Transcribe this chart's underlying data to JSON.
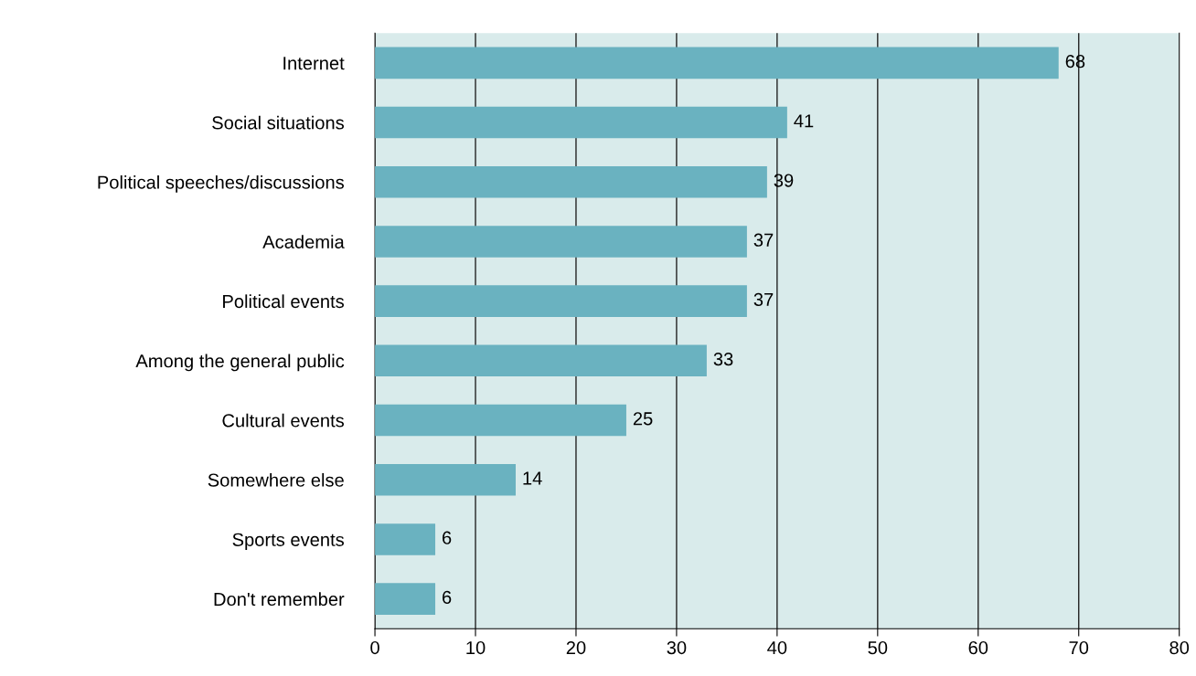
{
  "chart_data": {
    "type": "bar",
    "orientation": "horizontal",
    "categories": [
      "Internet",
      "Social situations",
      "Political speeches/discussions",
      "Academia",
      "Political events",
      "Among the general public",
      "Cultural events",
      "Somewhere else",
      "Sports events",
      "Don't remember"
    ],
    "values": [
      68,
      41,
      39,
      37,
      37,
      33,
      25,
      14,
      6,
      6
    ],
    "color": "#6ab2c0",
    "xlim": [
      0,
      80
    ],
    "xticks": [
      0,
      10,
      20,
      30,
      40,
      50,
      60,
      70,
      80
    ],
    "grid": "x",
    "data_labels": true
  }
}
